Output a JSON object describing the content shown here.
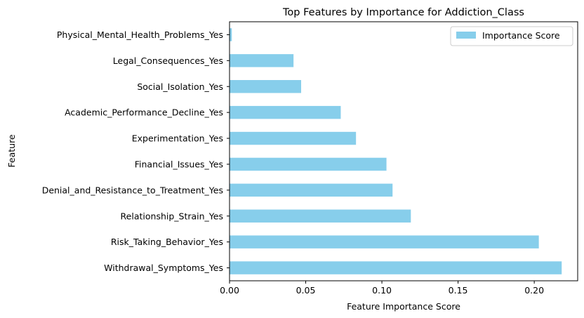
{
  "chart_data": {
    "type": "bar",
    "orientation": "horizontal",
    "title": "Top Features by Importance for Addiction_Class",
    "xlabel": "Feature Importance Score",
    "ylabel": "Feature",
    "xlim": [
      0,
      0.2285
    ],
    "xticks": [
      0.0,
      0.05,
      0.1,
      0.15,
      0.2
    ],
    "xtick_labels": [
      "0.00",
      "0.05",
      "0.10",
      "0.15",
      "0.20"
    ],
    "categories": [
      "Withdrawal_Symptoms_Yes",
      "Risk_Taking_Behavior_Yes",
      "Relationship_Strain_Yes",
      "Denial_and_Resistance_to_Treatment_Yes",
      "Financial_Issues_Yes",
      "Experimentation_Yes",
      "Academic_Performance_Decline_Yes",
      "Social_Isolation_Yes",
      "Legal_Consequences_Yes",
      "Physical_Mental_Health_Problems_Yes"
    ],
    "series": [
      {
        "name": "Importance Score",
        "color": "#87ceeb",
        "values": [
          0.218,
          0.203,
          0.119,
          0.107,
          0.103,
          0.083,
          0.073,
          0.047,
          0.042,
          0.0015
        ]
      }
    ],
    "legend_position": "top-right",
    "grid": false
  }
}
